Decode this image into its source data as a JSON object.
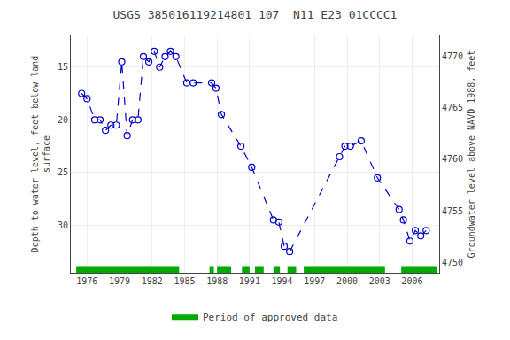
{
  "chart_data": {
    "type": "line",
    "title": "USGS 385016119214801 107  N11 E23 01CCCC1",
    "ylabel": "Depth to water level, feet below land\nsurface",
    "y2label": "Groundwater level above NAVD 1988, feet",
    "x": [
      1975.5,
      1976.0,
      1976.7,
      1977.2,
      1977.7,
      1978.2,
      1978.7,
      1979.2,
      1979.7,
      1980.2,
      1980.7,
      1981.2,
      1981.7,
      1982.2,
      1982.7,
      1983.2,
      1983.7,
      1984.2,
      1985.2,
      1985.8,
      1987.5,
      1987.9,
      1988.4,
      1990.2,
      1991.2,
      1993.2,
      1993.7,
      1994.2,
      1994.7,
      1999.3,
      1999.8,
      2000.3,
      2001.3,
      2002.8,
      2004.8,
      2005.2,
      2005.8,
      2006.3,
      2006.8,
      2007.3
    ],
    "series": [
      {
        "values": [
          17.5,
          18.0,
          20.0,
          20.0,
          21.0,
          20.5,
          20.5,
          14.5,
          21.5,
          20.0,
          20.0,
          14.0,
          14.5,
          13.5,
          15.0,
          14.0,
          13.5,
          14.0,
          16.5,
          16.5,
          16.5,
          17.0,
          19.5,
          22.5,
          24.5,
          29.5,
          29.7,
          32.0,
          32.5,
          23.5,
          22.5,
          22.5,
          22.0,
          25.5,
          28.5,
          29.5,
          31.5,
          30.5,
          31.0,
          30.5
        ],
        "color": "#0000cc",
        "line_style": "dashed",
        "marker": "open circle"
      },
      {
        "name": "Period of approved data",
        "type": "span",
        "color": "#00aa00",
        "segments": [
          [
            1975.0,
            1984.5
          ],
          [
            1987.3,
            1987.7
          ],
          [
            1988.0,
            1989.3
          ],
          [
            1990.3,
            1991.0
          ],
          [
            1991.5,
            1992.3
          ],
          [
            1993.2,
            1993.8
          ],
          [
            1994.5,
            1995.3
          ],
          [
            1996.0,
            2003.5
          ],
          [
            2005.0,
            2008.3
          ]
        ]
      }
    ],
    "xlim": [
      1974.5,
      2008.5
    ],
    "xticks": [
      1976,
      1979,
      1982,
      1985,
      1988,
      1991,
      1994,
      1997,
      2000,
      2003,
      2006
    ],
    "ylim": [
      34.5,
      12.0
    ],
    "yticks": [
      15,
      20,
      25,
      30
    ],
    "y2lim": [
      4749.0,
      4772.0
    ],
    "y2ticks": [
      4750,
      4755,
      4760,
      4765,
      4770
    ],
    "grid": true,
    "legend": "bottom"
  }
}
